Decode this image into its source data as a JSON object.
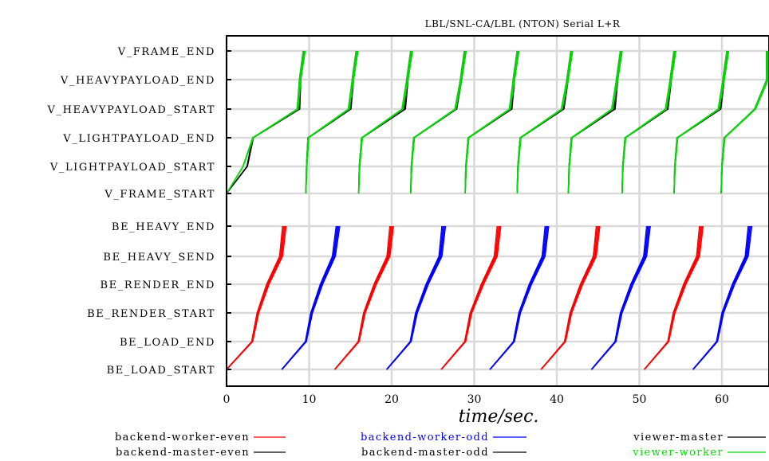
{
  "chart_data": {
    "type": "line",
    "title": "LBL/SNL-CA/LBL (NTON) Serial L+R",
    "xlabel": "time/sec.",
    "xlim": [
      0,
      65.5
    ],
    "xticks": [
      "0",
      "10",
      "20",
      "30",
      "40",
      "50",
      "60"
    ],
    "grid": true,
    "legend_position": "bottom",
    "categories": [
      "BE_LOAD_START",
      "BE_LOAD_END",
      "BE_RENDER_START",
      "BE_RENDER_END",
      "BE_HEAVY_SEND",
      "BE_HEAVY_END",
      "V_FRAME_START",
      "V_LIGHTPAYLOAD_START",
      "V_LIGHTPAYLOAD_END",
      "V_HEAVYPAYLOAD_START",
      "V_HEAVYPAYLOAD_END",
      "V_FRAME_END"
    ],
    "series": [
      {
        "name": "backend-worker-even",
        "color": "#ff0000",
        "frames": [
          {
            "x": [
              0.0,
              3.1,
              3.8,
              5.0,
              6.6,
              7.0
            ]
          },
          {
            "x": [
              13.1,
              16.0,
              16.7,
              18.0,
              19.6,
              20.0
            ]
          },
          {
            "x": [
              26.0,
              28.9,
              29.6,
              31.0,
              32.6,
              33.0
            ]
          },
          {
            "x": [
              38.1,
              41.0,
              41.7,
              43.0,
              44.6,
              45.0
            ]
          },
          {
            "x": [
              50.6,
              53.5,
              54.2,
              55.5,
              57.1,
              57.5
            ]
          }
        ]
      },
      {
        "name": "backend-worker-odd",
        "color": "#0000ff",
        "frames": [
          {
            "x": [
              6.7,
              9.6,
              10.3,
              11.5,
              13.0,
              13.5
            ]
          },
          {
            "x": [
              19.4,
              22.3,
              23.0,
              24.3,
              25.9,
              26.3
            ]
          },
          {
            "x": [
              31.9,
              34.8,
              35.5,
              36.8,
              38.4,
              38.8
            ]
          },
          {
            "x": [
              44.2,
              47.1,
              47.8,
              49.1,
              50.7,
              51.1
            ]
          },
          {
            "x": [
              56.5,
              59.4,
              60.1,
              61.4,
              63.0,
              63.4
            ]
          }
        ]
      },
      {
        "name": "viewer-master",
        "color": "#000000",
        "frames": [
          {
            "x": [
              0.0,
              2.5,
              3.2,
              8.8,
              8.9,
              9.4
            ]
          },
          {
            "x": [
              9.6,
              9.7,
              9.9,
              15.0,
              15.3,
              15.8
            ]
          },
          {
            "x": [
              16.0,
              16.1,
              16.4,
              21.6,
              21.9,
              22.4
            ]
          },
          {
            "x": [
              22.3,
              22.4,
              22.7,
              27.8,
              28.4,
              28.9
            ]
          },
          {
            "x": [
              28.9,
              29.0,
              29.3,
              34.5,
              34.8,
              35.3
            ]
          },
          {
            "x": [
              35.2,
              35.3,
              35.6,
              40.8,
              41.3,
              41.8
            ]
          },
          {
            "x": [
              41.4,
              41.5,
              41.8,
              47.0,
              47.3,
              47.8
            ]
          },
          {
            "x": [
              47.9,
              48.0,
              48.3,
              53.4,
              53.8,
              54.3
            ]
          },
          {
            "x": [
              54.2,
              54.3,
              54.6,
              59.8,
              60.2,
              60.7
            ]
          },
          {
            "x": [
              59.9,
              60.0,
              60.3,
              64.0,
              65.5,
              65.5
            ]
          }
        ]
      },
      {
        "name": "viewer-worker",
        "color": "#00dd00",
        "frames": [
          {
            "x": [
              0.0,
              2.0,
              3.2,
              8.6,
              8.9,
              9.4
            ]
          },
          {
            "x": [
              9.6,
              9.7,
              9.9,
              14.8,
              15.3,
              15.8
            ]
          },
          {
            "x": [
              16.0,
              16.1,
              16.4,
              21.3,
              21.9,
              22.4
            ]
          },
          {
            "x": [
              22.3,
              22.4,
              22.7,
              27.7,
              28.4,
              28.9
            ]
          },
          {
            "x": [
              28.9,
              29.0,
              29.3,
              34.3,
              34.8,
              35.3
            ]
          },
          {
            "x": [
              35.2,
              35.3,
              35.6,
              40.6,
              41.3,
              41.8
            ]
          },
          {
            "x": [
              41.4,
              41.5,
              41.8,
              46.7,
              47.3,
              47.8
            ]
          },
          {
            "x": [
              47.9,
              48.0,
              48.3,
              53.2,
              53.8,
              54.3
            ]
          },
          {
            "x": [
              54.2,
              54.3,
              54.6,
              59.6,
              60.2,
              60.7
            ]
          },
          {
            "x": [
              59.9,
              60.0,
              60.3,
              64.0,
              65.5,
              65.5
            ]
          }
        ]
      },
      {
        "name": "backend-master-even",
        "color": "#000000",
        "frames": []
      },
      {
        "name": "backend-master-odd",
        "color": "#000000",
        "frames": []
      }
    ]
  },
  "legend": [
    {
      "label": "backend-worker-even",
      "color": "#000000",
      "swatch": "#ff0000"
    },
    {
      "label": "backend-master-even",
      "color": "#000000",
      "swatch": "#000000"
    },
    {
      "label": "backend-worker-odd",
      "color": "#0000ff",
      "swatch": "#0000ff"
    },
    {
      "label": "backend-master-odd",
      "color": "#000000",
      "swatch": "#000000"
    },
    {
      "label": "viewer-master",
      "color": "#000000",
      "swatch": "#000000"
    },
    {
      "label": "viewer-worker",
      "color": "#00dd00",
      "swatch": "#00dd00"
    }
  ]
}
